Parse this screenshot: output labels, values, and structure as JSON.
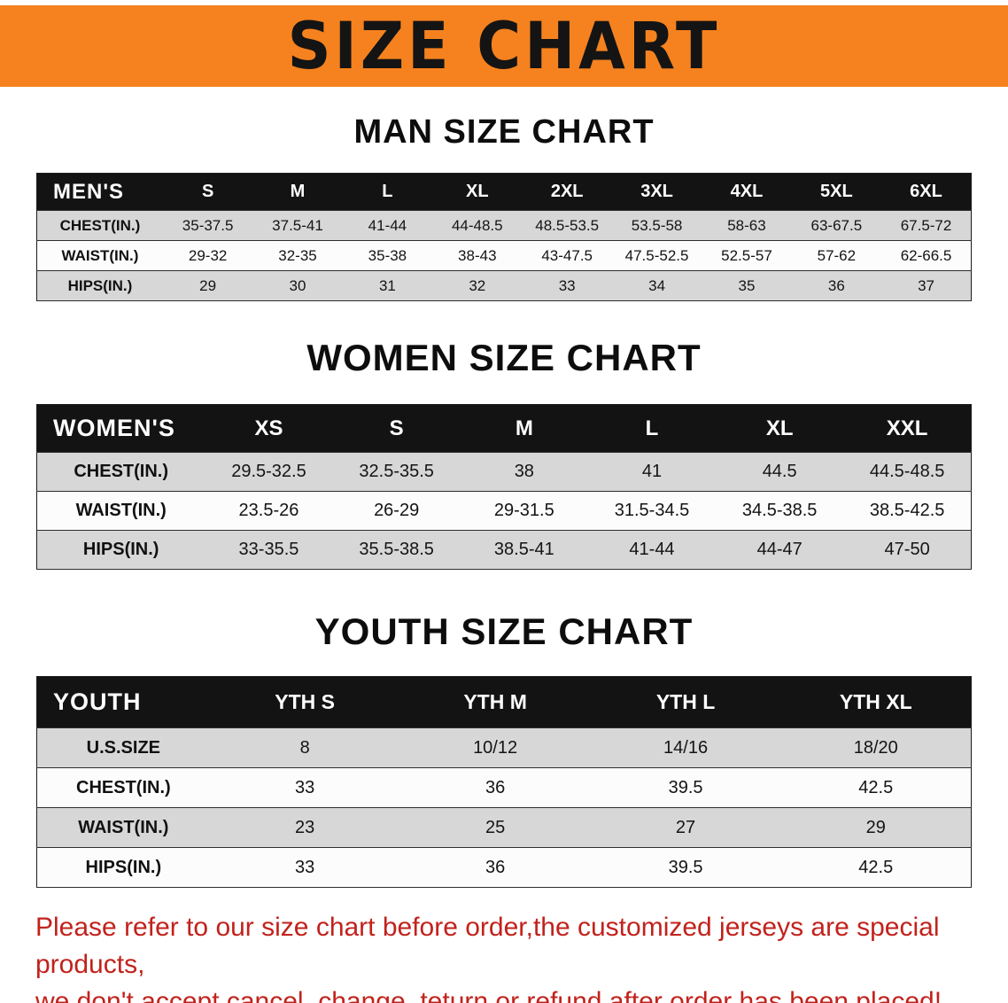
{
  "banner": {
    "title": "SIZE CHART",
    "bg_color": "#f5821f",
    "text_color": "#141414"
  },
  "chart_data": [
    {
      "type": "table",
      "id": "men",
      "title": "MAN SIZE CHART",
      "corner_label": "MEN'S",
      "columns": [
        "S",
        "M",
        "L",
        "XL",
        "2XL",
        "3XL",
        "4XL",
        "5XL",
        "6XL"
      ],
      "rows": [
        {
          "label": "CHEST(IN.)",
          "values": [
            "35-37.5",
            "37.5-41",
            "41-44",
            "44-48.5",
            "48.5-53.5",
            "53.5-58",
            "58-63",
            "63-67.5",
            "67.5-72"
          ]
        },
        {
          "label": "WAIST(IN.)",
          "values": [
            "29-32",
            "32-35",
            "35-38",
            "38-43",
            "43-47.5",
            "47.5-52.5",
            "52.5-57",
            "57-62",
            "62-66.5"
          ]
        },
        {
          "label": "HIPS(IN.)",
          "values": [
            "29",
            "30",
            "31",
            "32",
            "33",
            "34",
            "35",
            "36",
            "37"
          ]
        }
      ]
    },
    {
      "type": "table",
      "id": "women",
      "title": "WOMEN SIZE CHART",
      "corner_label": "WOMEN'S",
      "columns": [
        "XS",
        "S",
        "M",
        "L",
        "XL",
        "XXL"
      ],
      "rows": [
        {
          "label": "CHEST(IN.)",
          "values": [
            "29.5-32.5",
            "32.5-35.5",
            "38",
            "41",
            "44.5",
            "44.5-48.5"
          ]
        },
        {
          "label": "WAIST(IN.)",
          "values": [
            "23.5-26",
            "26-29",
            "29-31.5",
            "31.5-34.5",
            "34.5-38.5",
            "38.5-42.5"
          ]
        },
        {
          "label": "HIPS(IN.)",
          "values": [
            "33-35.5",
            "35.5-38.5",
            "38.5-41",
            "41-44",
            "44-47",
            "47-50"
          ]
        }
      ]
    },
    {
      "type": "table",
      "id": "youth",
      "title": "YOUTH SIZE CHART",
      "corner_label": "YOUTH",
      "columns": [
        "YTH S",
        "YTH M",
        "YTH L",
        "YTH XL"
      ],
      "rows": [
        {
          "label": "U.S.SIZE",
          "values": [
            "8",
            "10/12",
            "14/16",
            "18/20"
          ]
        },
        {
          "label": "CHEST(IN.)",
          "values": [
            "33",
            "36",
            "39.5",
            "42.5"
          ]
        },
        {
          "label": "WAIST(IN.)",
          "values": [
            "23",
            "25",
            "27",
            "29"
          ]
        },
        {
          "label": "HIPS(IN.)",
          "values": [
            "33",
            "36",
            "39.5",
            "42.5"
          ]
        }
      ]
    }
  ],
  "footer": {
    "lines": [
      "Please refer to our size chart before order,the customized jerseys are special products,",
      "we don't accept cancel, change, teturn or refund after order has been placed!"
    ],
    "color": "#c2221c"
  }
}
